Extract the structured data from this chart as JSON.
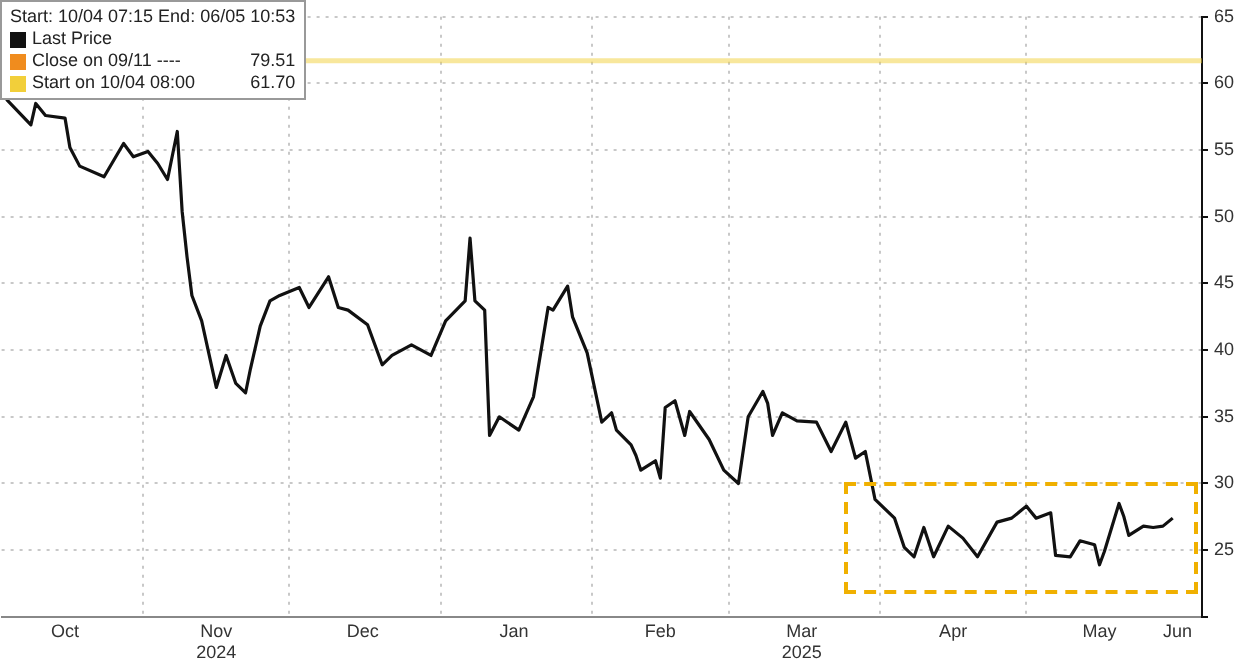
{
  "chart_data": {
    "type": "line",
    "annotations": [
      "Start: 10/04 07:15 End: 06/05 10:53",
      "Close on 09/11 ----",
      "79.51",
      "Start on 10/04 08:00",
      "61.70"
    ],
    "series": [
      {
        "name": "Last Price",
        "color": "#111111",
        "x": [
          "2024-10-04",
          "2024-10-09",
          "2024-10-10",
          "2024-10-12",
          "2024-10-16",
          "2024-10-17",
          "2024-10-19",
          "2024-10-24",
          "2024-10-28",
          "2024-10-30",
          "2024-11-02",
          "2024-11-04",
          "2024-11-06",
          "2024-11-08",
          "2024-11-09",
          "2024-11-10",
          "2024-11-11",
          "2024-11-13",
          "2024-11-16",
          "2024-11-18",
          "2024-11-20",
          "2024-11-22",
          "2024-11-23",
          "2024-11-25",
          "2024-11-27",
          "2024-11-29",
          "2024-12-03",
          "2024-12-05",
          "2024-12-09",
          "2024-12-11",
          "2024-12-13",
          "2024-12-17",
          "2024-12-20",
          "2024-12-22",
          "2024-12-26",
          "2024-12-30",
          "2025-01-02",
          "2025-01-06",
          "2025-01-07",
          "2025-01-08",
          "2025-01-10",
          "2025-01-11",
          "2025-01-13",
          "2025-01-17",
          "2025-01-20",
          "2025-01-23",
          "2025-01-24",
          "2025-01-27",
          "2025-01-28",
          "2025-01-31",
          "2025-02-03",
          "2025-02-05",
          "2025-02-06",
          "2025-02-09",
          "2025-02-10",
          "2025-02-11",
          "2025-02-14",
          "2025-02-15",
          "2025-02-16",
          "2025-02-18",
          "2025-02-20",
          "2025-02-21",
          "2025-02-25",
          "2025-02-28",
          "2025-03-03",
          "2025-03-05",
          "2025-03-08",
          "2025-03-09",
          "2025-03-10",
          "2025-03-12",
          "2025-03-15",
          "2025-03-19",
          "2025-03-22",
          "2025-03-25",
          "2025-03-27",
          "2025-03-29",
          "2025-03-31",
          "2025-04-04",
          "2025-04-06",
          "2025-04-08",
          "2025-04-10",
          "2025-04-12",
          "2025-04-15",
          "2025-04-18",
          "2025-04-21",
          "2025-04-25",
          "2025-04-28",
          "2025-05-01",
          "2025-05-03",
          "2025-05-06",
          "2025-05-07",
          "2025-05-10",
          "2025-05-12",
          "2025-05-15",
          "2025-05-16",
          "2025-05-17",
          "2025-05-20",
          "2025-05-21",
          "2025-05-22",
          "2025-05-25",
          "2025-05-27",
          "2025-05-29",
          "2025-05-31"
        ],
        "values": [
          58.8,
          56.9,
          58.5,
          57.6,
          57.4,
          55.2,
          53.8,
          53,
          55.5,
          54.5,
          54.9,
          54,
          52.8,
          56.4,
          50.4,
          47,
          44.1,
          42.2,
          37.2,
          39.6,
          37.5,
          36.8,
          38.6,
          41.8,
          43.7,
          44.1,
          44.7,
          43.2,
          45.5,
          43.2,
          43,
          41.9,
          38.9,
          39.6,
          40.4,
          39.6,
          42.2,
          43.7,
          48.4,
          43.7,
          43,
          33.6,
          35,
          34,
          36.5,
          43.2,
          43,
          44.8,
          42.5,
          39.8,
          34.6,
          35.3,
          34,
          32.9,
          32.1,
          31,
          31.7,
          30.4,
          35.7,
          36.2,
          33.6,
          35.4,
          33.3,
          31,
          30,
          35,
          36.9,
          36,
          33.6,
          35.3,
          34.7,
          34.6,
          32.4,
          34.6,
          31.9,
          32.4,
          28.8,
          27.4,
          25.2,
          24.5,
          26.7,
          24.5,
          26.8,
          25.9,
          24.5,
          27.1,
          27.4,
          28.3,
          27.4,
          27.8,
          24.6,
          24.5,
          25.7,
          25.4,
          23.9,
          24.9,
          28.5,
          27.5,
          26.1,
          26.8,
          26.7,
          26.8,
          27.4
        ]
      }
    ],
    "ref_lines": [
      {
        "axis": "y",
        "value": 61.7,
        "color": "#f2cf3a"
      }
    ],
    "xlim": [
      "2024-10-03",
      "2025-06-06"
    ],
    "xticks": [
      {
        "value": "2024-10-16",
        "label": "Oct"
      },
      {
        "value": "2024-11-01",
        "label": null
      },
      {
        "value": "2024-11-16",
        "label": "Nov\n2024"
      },
      {
        "value": "2024-12-01",
        "label": null
      },
      {
        "value": "2024-12-16",
        "label": "Dec"
      },
      {
        "value": "2025-01-01",
        "label": null
      },
      {
        "value": "2025-01-16",
        "label": "Jan"
      },
      {
        "value": "2025-02-01",
        "label": null
      },
      {
        "value": "2025-02-15",
        "label": "Feb"
      },
      {
        "value": "2025-03-01",
        "label": null
      },
      {
        "value": "2025-03-16",
        "label": "Mar\n2025"
      },
      {
        "value": "2025-04-01",
        "label": null
      },
      {
        "value": "2025-04-16",
        "label": "Apr"
      },
      {
        "value": "2025-05-01",
        "label": null
      },
      {
        "value": "2025-05-16",
        "label": "May"
      },
      {
        "value": "2025-06-01",
        "label": "Jun"
      }
    ],
    "ylim": [
      20,
      65
    ],
    "yticks": [
      {
        "value": 20,
        "label": null
      },
      25,
      30,
      35,
      40,
      45,
      50,
      55,
      60,
      65
    ],
    "grid": true,
    "legend": "top left",
    "marker": "none",
    "line_style": "solid"
  }
}
